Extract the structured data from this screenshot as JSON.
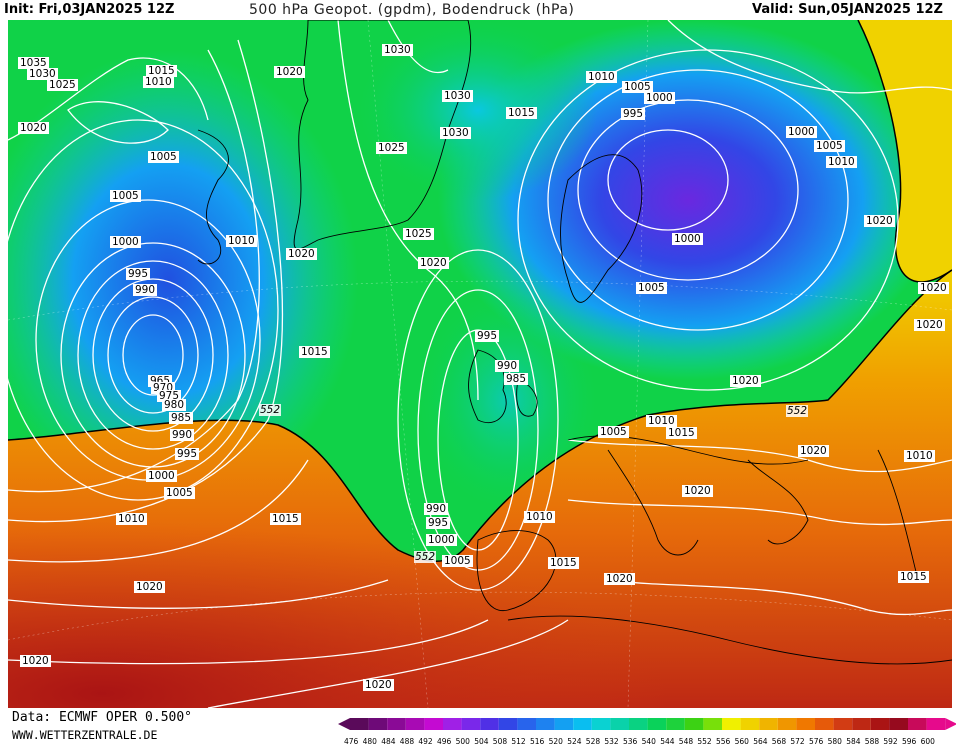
{
  "header": {
    "init": "Init: Fri,03JAN2025 12Z",
    "title": "500 hPa Geopot. (gpdm), Bodendruck (hPa)",
    "valid": "Valid: Sun,05JAN2025 12Z"
  },
  "map": {
    "isobar_labels": [
      "1035",
      "1030",
      "1025",
      "1020",
      "1015",
      "1010",
      "1005",
      "1000",
      "995",
      "990",
      "985",
      "980",
      "975",
      "970",
      "965",
      "1015",
      "1005",
      "1000",
      "995",
      "990",
      "985",
      "1030",
      "1025",
      "1020",
      "1020",
      "1015",
      "1025",
      "1030",
      "1030",
      "1020",
      "1015",
      "1010",
      "1005",
      "1000",
      "995",
      "1000",
      "1000",
      "1005",
      "1010",
      "1020",
      "1005",
      "1020",
      "1010",
      "1015",
      "1020",
      "1010",
      "1020",
      "1015",
      "1005",
      "1010",
      "1020",
      "1015",
      "1020",
      "1020",
      "1010",
      "1015",
      "1020",
      "1020",
      "1005",
      "990",
      "995",
      "1000",
      "1005",
      "1010",
      "1015",
      "1000",
      "1005",
      "1010",
      "1015",
      "1020",
      "1020",
      "1010",
      "1005",
      "995",
      "990",
      "985",
      "1025",
      "1005"
    ],
    "geopotential_labels": [
      "552",
      "552",
      "552"
    ]
  },
  "footer": {
    "data_source": "Data: ECMWF OPER 0.500°",
    "website": "WWW.WETTERZENTRALE.DE"
  },
  "colorbar": {
    "ticks": [
      "476",
      "480",
      "484",
      "488",
      "492",
      "496",
      "500",
      "504",
      "508",
      "512",
      "516",
      "520",
      "524",
      "528",
      "532",
      "536",
      "540",
      "544",
      "548",
      "552",
      "556",
      "560",
      "564",
      "568",
      "572",
      "576",
      "580",
      "584",
      "588",
      "592",
      "596",
      "600"
    ],
    "colors": [
      "#5a0a5a",
      "#6e0a78",
      "#8a0a96",
      "#a80ab4",
      "#c40ad2",
      "#a020e6",
      "#7a28ea",
      "#5030e6",
      "#3246e6",
      "#2864ec",
      "#1e82f0",
      "#14a0f2",
      "#0abef0",
      "#0ad2d2",
      "#0ad2aa",
      "#0ad282",
      "#0ad25a",
      "#1ed23c",
      "#3cd214",
      "#78e00a",
      "#f0f000",
      "#f0d200",
      "#f0b400",
      "#f09600",
      "#f07800",
      "#e65a0a",
      "#d23c14",
      "#be2814",
      "#aa1414",
      "#960a1e",
      "#c80a5a",
      "#e60a8c"
    ]
  },
  "colors": {
    "cold": "#4a28c8",
    "mid": "#14d23c",
    "warm": "#f0a000",
    "hot": "#be2814"
  }
}
